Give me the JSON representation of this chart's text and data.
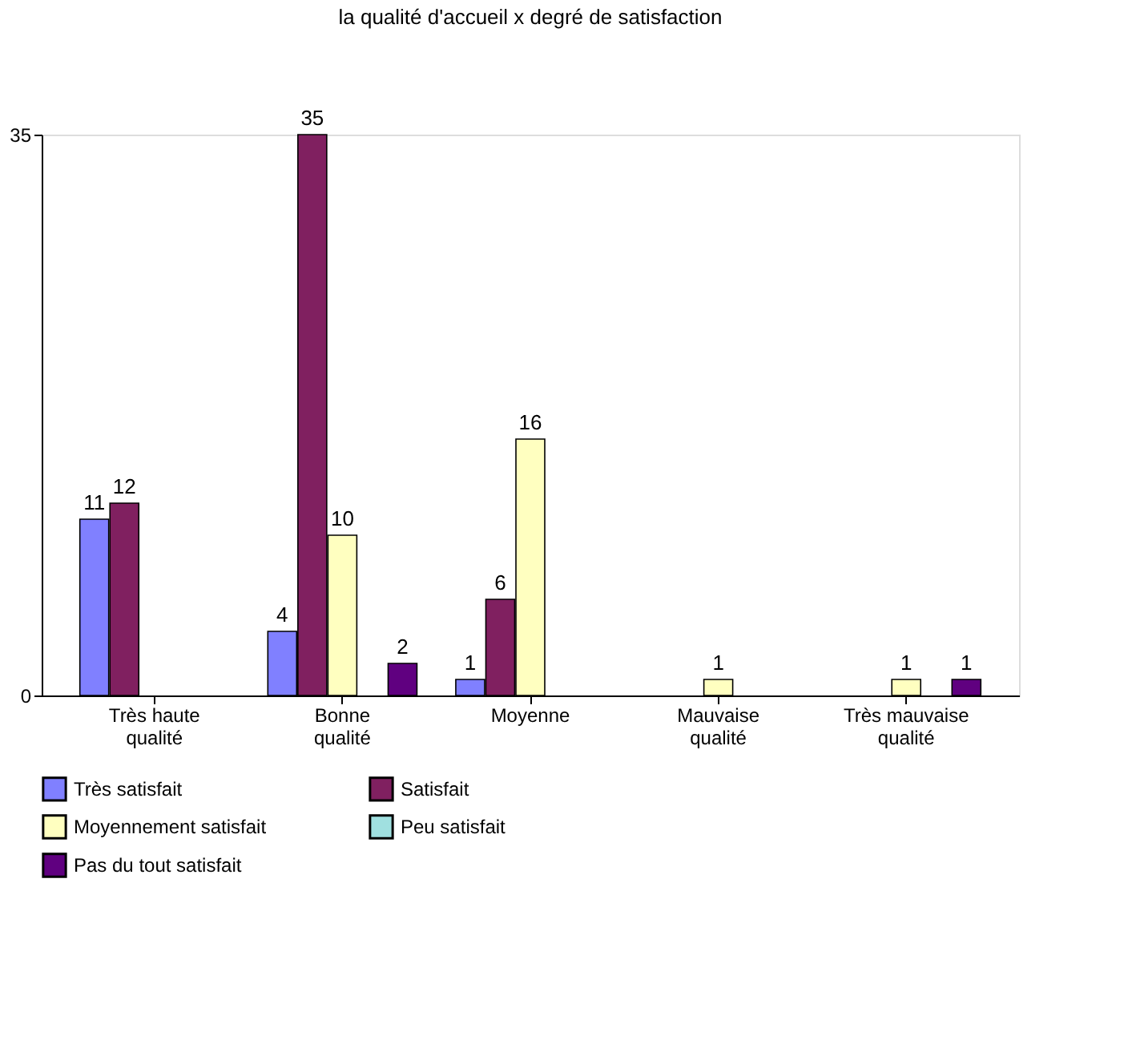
{
  "chart_data": {
    "type": "bar",
    "title": "la qualité d'accueil x degré de satisfaction",
    "categories": [
      "Très haute qualité",
      "Bonne qualité",
      "Moyenne",
      "Mauvaise qualité",
      "Très mauvaise qualité"
    ],
    "series": [
      {
        "name": "Très satisfait",
        "color": "#8080ff",
        "values": [
          11,
          4,
          1,
          null,
          null
        ]
      },
      {
        "name": "Satisfait",
        "color": "#802060",
        "values": [
          12,
          35,
          6,
          null,
          null
        ]
      },
      {
        "name": "Moyennement satisfait",
        "color": "#ffffc0",
        "values": [
          null,
          10,
          16,
          1,
          1
        ]
      },
      {
        "name": "Peu satisfait",
        "color": "#a0e0e0",
        "values": [
          null,
          null,
          null,
          null,
          null
        ]
      },
      {
        "name": "Pas du tout satisfait",
        "color": "#600080",
        "values": [
          null,
          2,
          null,
          null,
          1
        ]
      }
    ],
    "ylim": [
      0,
      35
    ],
    "yticks": [
      0,
      35
    ],
    "data_labels": true,
    "legend": "bottom",
    "grid": false
  }
}
